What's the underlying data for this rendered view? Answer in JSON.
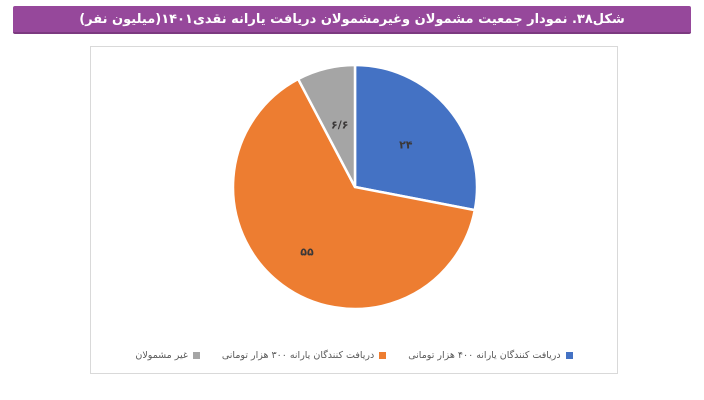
{
  "banner": {
    "title": "شکل۳۸. نمودار جمعیت مشمولان وغیرمشمولان دریافت یارانه نقدی۱۴۰۱(میلیون نفر)",
    "bg_color": "#96489B",
    "text_color": "#FFFFFF"
  },
  "chart_data": {
    "type": "pie",
    "title": "شکل۳۸. نمودار جمعیت مشمولان وغیرمشمولان دریافت یارانه نقدی۱۴۰۱(میلیون نفر)",
    "unit": "میلیون نفر",
    "start_angle_deg": 0,
    "direction": "clockwise",
    "legend_position": "bottom",
    "total": 85.6,
    "slices": [
      {
        "name": "دریافت کنندگان یارانه ۴۰۰ هزار تومانی",
        "value": 24,
        "display_value": "۲۴",
        "color": "#4472C4"
      },
      {
        "name": "دریافت کنندگان یارانه ۳۰۰ هزار تومانی",
        "value": 55,
        "display_value": "۵۵",
        "color": "#ED7D31"
      },
      {
        "name": "غیر مشمولان",
        "value": 6.6,
        "display_value": "۶/۶",
        "color": "#A5A5A5"
      }
    ]
  },
  "legend": {
    "entries": [
      {
        "label": "غیر مشمولان",
        "color": "#A5A5A5"
      },
      {
        "label": "دریافت کنندگان یارانه ۳۰۰ هزار تومانی",
        "color": "#ED7D31"
      },
      {
        "label": "دریافت کنندگان یارانه ۴۰۰ هزار تومانی",
        "color": "#4472C4"
      }
    ]
  }
}
